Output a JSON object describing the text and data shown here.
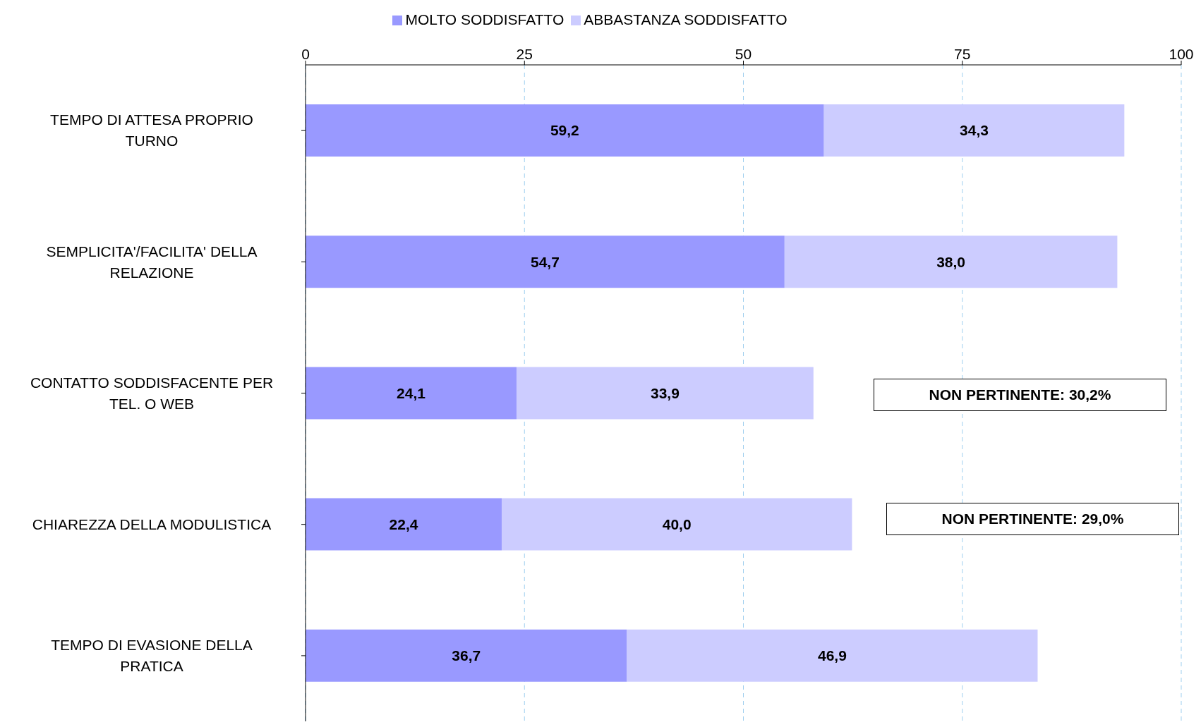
{
  "chart_data": {
    "type": "bar",
    "orientation": "horizontal",
    "stacked": true,
    "categories": [
      "TEMPO DI ATTESA PROPRIO TURNO",
      "SEMPLICITA'/FACILITA' DELLA RELAZIONE",
      "CONTATTO SODDISFACENTE PER TEL. O WEB",
      "CHIAREZZA DELLA MODULISTICA",
      "TEMPO DI EVASIONE DELLA PRATICA"
    ],
    "series": [
      {
        "name": "MOLTO SODDISFATTO",
        "color": "#9999ff",
        "values": [
          59.2,
          54.7,
          24.1,
          22.4,
          36.7
        ],
        "value_labels": [
          "59,2",
          "54,7",
          "24,1",
          "22,4",
          "36,7"
        ]
      },
      {
        "name": "ABBASTANZA SODDISFATTO",
        "color": "#ccccff",
        "values": [
          34.3,
          38.0,
          33.9,
          40.0,
          46.9
        ],
        "value_labels": [
          "34,3",
          "38,0",
          "33,9",
          "40,0",
          "46,9"
        ]
      }
    ],
    "xlim": [
      0,
      100
    ],
    "xticks": [
      0,
      25,
      50,
      75,
      100
    ],
    "grid": "x",
    "legend": "top",
    "annotations": [
      "NON PERTINENTE: 30,2%",
      "NON PERTINENTE: 29,0%"
    ]
  }
}
